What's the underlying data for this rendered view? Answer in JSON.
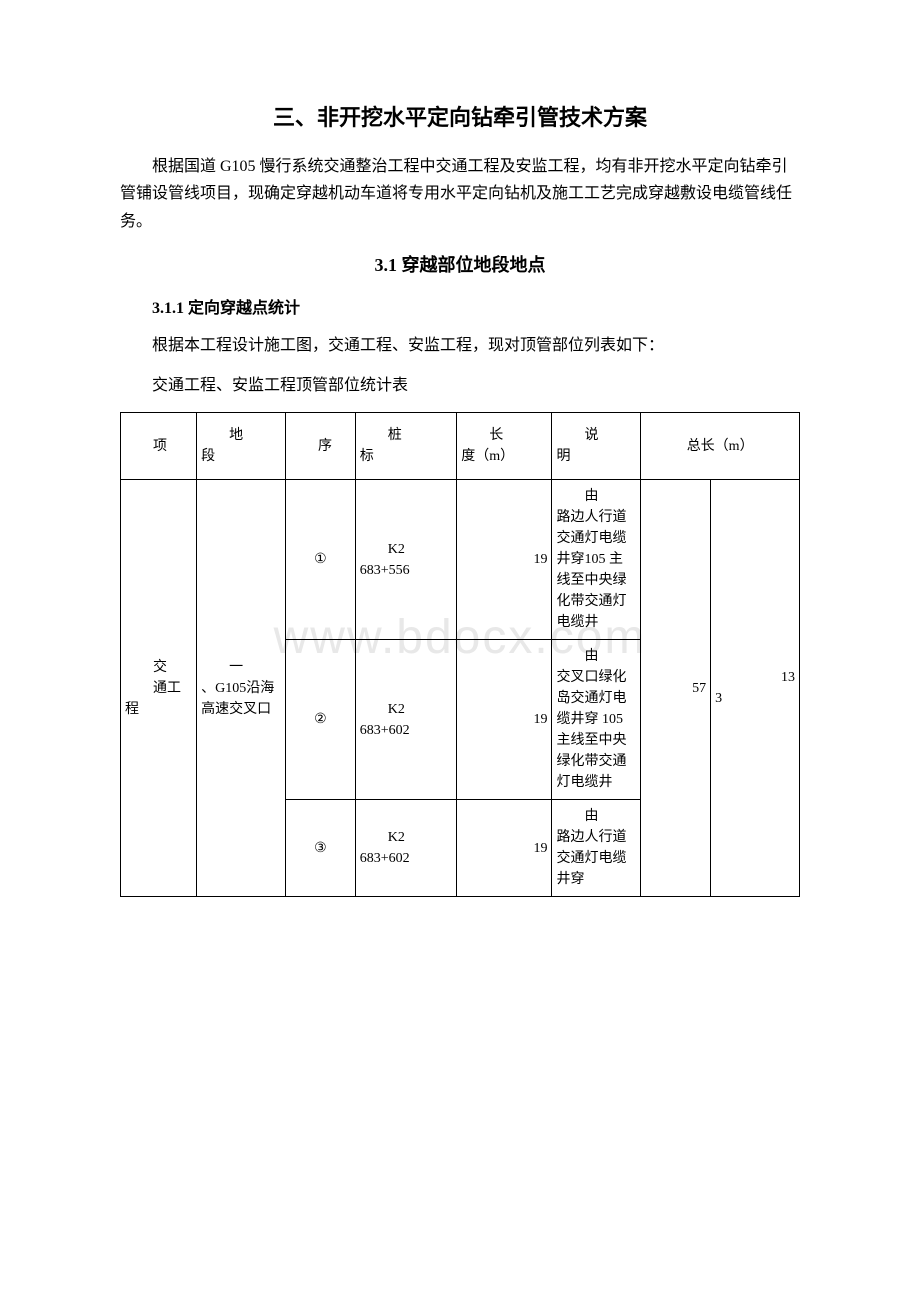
{
  "watermark": "www.bdocx.com",
  "title": "三、非开挖水平定向钻牵引管技术方案",
  "intro": "根据国道 G105 慢行系统交通整治工程中交通工程及安监工程，均有非开挖水平定向钻牵引管铺设管线项目，现确定穿越机动车道将专用水平定向钻机及施工工艺完成穿越敷设电缆管线任务。",
  "section_3_1_title": "3.1 穿越部位地段地点",
  "section_3_1_1_title": "3.1.1 定向穿越点统计",
  "para1": "根据本工程设计施工图，交通工程、安监工程，现对顶管部位列表如下：",
  "para2": "交通工程、安监工程顶管部位统计表",
  "table": {
    "headers": {
      "project": "项",
      "segment_prefix": "地",
      "segment_suffix": "段",
      "sequence": "序",
      "pile_prefix": "桩",
      "pile_suffix": "标",
      "length_prefix": "长",
      "length_suffix": "度（m）",
      "desc_prefix": "说",
      "desc_suffix": "明",
      "total": "总长（m）"
    },
    "project_cell_line1": "交",
    "project_cell_line2": "通工程",
    "segment_cell_line1": "一",
    "segment_cell_line2": "、G105沿海高速交叉口",
    "total_col1": "57",
    "total_col2_line1": "13",
    "total_col2_line2": "3",
    "rows": [
      {
        "seq": "①",
        "pile_line1": "K2",
        "pile_line2": "683+556",
        "length": "19",
        "desc_line1": "由",
        "desc_line2": "路边人行道交通灯电缆井穿105 主线至中央绿化带交通灯电缆井"
      },
      {
        "seq": "②",
        "pile_line1": "K2",
        "pile_line2": "683+602",
        "length": "19",
        "desc_line1": "由",
        "desc_line2": "交叉口绿化岛交通灯电缆井穿 105主线至中央绿化带交通灯电缆井"
      },
      {
        "seq": "③",
        "pile_line1": "K2",
        "pile_line2": "683+602",
        "length": "19",
        "desc_line1": "由",
        "desc_line2": "路边人行道交通灯电缆井穿"
      }
    ]
  },
  "styles": {
    "background_color": "#ffffff",
    "text_color": "#000000",
    "border_color": "#000000",
    "watermark_color": "#e8e8e8",
    "title_fontsize": 22,
    "h2_fontsize": 18,
    "body_fontsize": 16,
    "table_fontsize": 14
  }
}
